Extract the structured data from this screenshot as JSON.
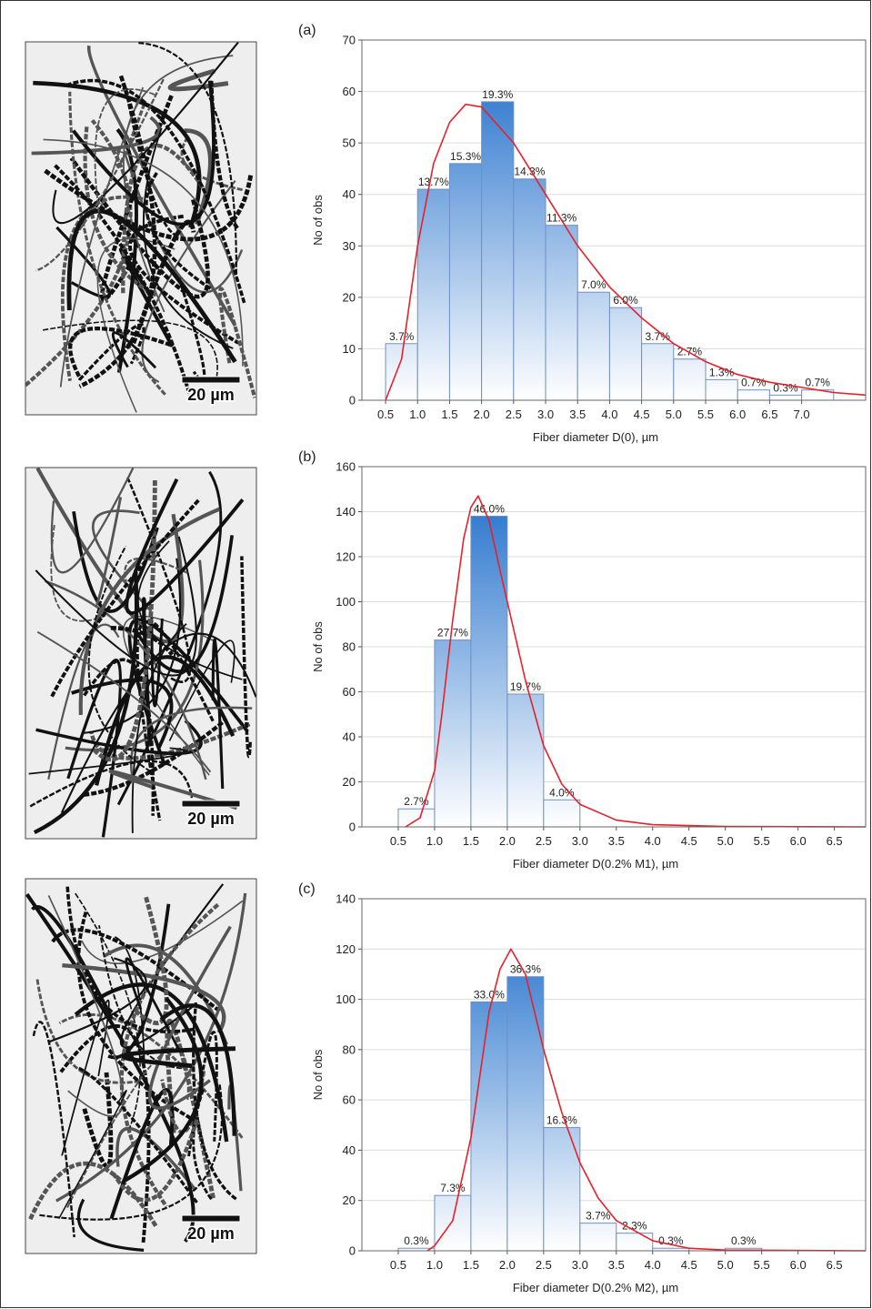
{
  "micrographs": [
    {
      "scale_bar": "20 µm"
    },
    {
      "scale_bar": "20 µm"
    },
    {
      "scale_bar": "20 µm"
    }
  ],
  "chart_data": [
    {
      "type": "histogram",
      "label": "(a)",
      "xlabel": "Fiber diameter D(0), µm",
      "ylabel": "No of obs",
      "bins": [
        0.5,
        1.0,
        1.5,
        2.0,
        2.5,
        3.0,
        3.5,
        4.0,
        4.5,
        5.0,
        5.5,
        6.0,
        6.5,
        7.0,
        7.5
      ],
      "values": [
        11,
        41,
        46,
        58,
        43,
        34,
        21,
        18,
        11,
        8,
        4,
        2,
        1,
        2
      ],
      "percent_labels": [
        "3.7%",
        "13.7%",
        "15.3%",
        "19.3%",
        "14.3%",
        "11.3%",
        "7.0%",
        "6.0%",
        "3.7%",
        "2.7%",
        "1.3%",
        "0.7%",
        "0.3%",
        "0.7%"
      ],
      "xlim": [
        0.13,
        8.0
      ],
      "ylim": [
        0,
        70
      ],
      "xticks": [
        0.5,
        {
          "value": 1.0,
          "label": "1.0"
        },
        1.5,
        {
          "value": 2.0,
          "label": "2.0"
        },
        2.5,
        {
          "value": 3.0,
          "label": "3.0"
        },
        3.5,
        {
          "value": 4.0,
          "label": "4.0"
        },
        4.5,
        {
          "value": 5.0,
          "label": "5.0"
        },
        5.5,
        {
          "value": 6.0,
          "label": "6.0"
        },
        6.5,
        {
          "value": 7.0,
          "label": "7.0"
        }
      ],
      "yticks": [
        0,
        10,
        20,
        30,
        40,
        50,
        60,
        70
      ],
      "grid": true,
      "color": "#1568c8",
      "fit": {
        "color": "#e8202a",
        "x": [
          0.5,
          0.75,
          1.0,
          1.25,
          1.5,
          1.75,
          2.0,
          2.5,
          3.0,
          3.5,
          4.0,
          4.5,
          5.0,
          5.5,
          6.0,
          6.5,
          7.0,
          7.5,
          8.0
        ],
        "values": [
          0,
          8,
          30,
          46,
          54,
          57.5,
          57,
          50,
          40,
          30,
          22,
          16,
          11,
          7.5,
          5,
          3.5,
          2.5,
          1.5,
          1
        ]
      }
    },
    {
      "type": "histogram",
      "label": "(b)",
      "xlabel": "Fiber diameter D(0.2% M1), µm",
      "ylabel": "No of obs",
      "bins": [
        0.5,
        1.0,
        1.5,
        2.0,
        2.5,
        3.0
      ],
      "values": [
        8,
        83,
        138,
        59,
        12
      ],
      "percent_labels": [
        "2.7%",
        "27.7%",
        "46.0%",
        "19.7%",
        "4.0%"
      ],
      "xlim": [
        0,
        6.93
      ],
      "ylim": [
        0,
        160
      ],
      "xticks": [
        0.5,
        {
          "value": 1.0,
          "label": "1.0"
        },
        1.5,
        {
          "value": 2.0,
          "label": "2.0"
        },
        2.5,
        {
          "value": 3.0,
          "label": "3.0"
        },
        3.5,
        {
          "value": 4.0,
          "label": "4.0"
        },
        4.5,
        {
          "value": 5.0,
          "label": "5.0"
        },
        5.5,
        {
          "value": 6.0,
          "label": "6.0"
        },
        6.5
      ],
      "yticks": [
        0,
        20,
        40,
        60,
        80,
        100,
        120,
        140,
        160
      ],
      "grid": true,
      "color": "#1568c8",
      "fit": {
        "color": "#e8202a",
        "x": [
          0.6,
          0.8,
          1.0,
          1.1,
          1.25,
          1.4,
          1.5,
          1.6,
          1.75,
          1.9,
          2.0,
          2.25,
          2.5,
          2.75,
          3.0,
          3.5,
          4.0,
          5.0,
          6.93
        ],
        "values": [
          0,
          4,
          25,
          50,
          92,
          128,
          142,
          147,
          136,
          114,
          100,
          65,
          36,
          19,
          10,
          3,
          1,
          0.2,
          0
        ]
      }
    },
    {
      "type": "histogram",
      "label": "(c)",
      "xlabel": "Fiber diameter D(0.2% M2), µm",
      "ylabel": "No of obs",
      "bins": [
        0.5,
        1.0,
        1.5,
        2.0,
        2.5,
        3.0,
        3.5,
        4.0,
        4.5,
        5.0,
        5.5
      ],
      "values": [
        1,
        22,
        99,
        109,
        49,
        11,
        7,
        1,
        0,
        1
      ],
      "percent_labels": [
        "0.3%",
        "7.3%",
        "33.0%",
        "36.3%",
        "16.3%",
        "3.7%",
        "2.3%",
        "0.3%",
        null,
        "0.3%"
      ],
      "xlim": [
        0,
        6.93
      ],
      "ylim": [
        0,
        140
      ],
      "xticks": [
        0.5,
        {
          "value": 1.0,
          "label": "1.0"
        },
        1.5,
        {
          "value": 2.0,
          "label": "2.0"
        },
        2.5,
        {
          "value": 3.0,
          "label": "3.0"
        },
        3.5,
        {
          "value": 4.0,
          "label": "4.0"
        },
        4.5,
        {
          "value": 5.0,
          "label": "5.0"
        },
        5.5,
        {
          "value": 6.0,
          "label": "6.0"
        },
        6.5
      ],
      "yticks": [
        0,
        20,
        40,
        60,
        80,
        100,
        120,
        140
      ],
      "grid": true,
      "color": "#1568c8",
      "fit": {
        "color": "#e8202a",
        "x": [
          0.9,
          1.0,
          1.25,
          1.5,
          1.75,
          1.9,
          2.05,
          2.25,
          2.5,
          2.75,
          3.0,
          3.25,
          3.5,
          4.0,
          4.5,
          5.0,
          6.93
        ],
        "values": [
          0,
          2,
          12,
          45,
          95,
          112,
          120,
          110,
          80,
          55,
          35,
          21,
          12,
          4,
          1,
          0.3,
          0
        ]
      }
    }
  ]
}
